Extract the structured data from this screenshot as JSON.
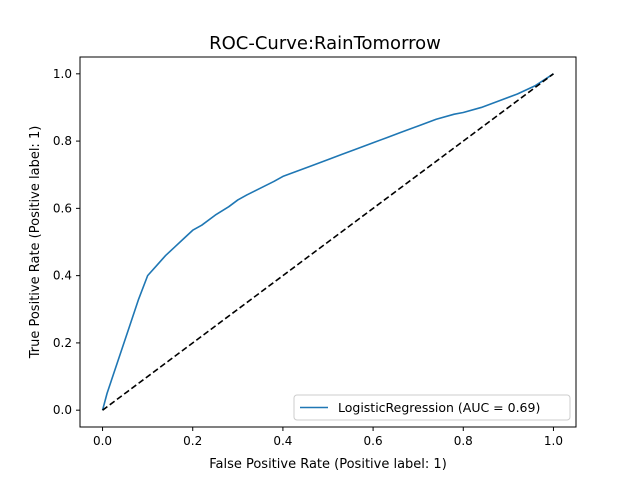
{
  "chart_data": {
    "type": "line",
    "title": "ROC-Curve:RainTomorrow",
    "xlabel": "False Positive Rate (Positive label: 1)",
    "ylabel": "True Positive Rate (Positive label: 1)",
    "xlim": [
      -0.05,
      1.05
    ],
    "ylim": [
      -0.05,
      1.05
    ],
    "xticks": [
      0.0,
      0.2,
      0.4,
      0.6,
      0.8,
      1.0
    ],
    "yticks": [
      0.0,
      0.2,
      0.4,
      0.6,
      0.8,
      1.0
    ],
    "xtick_labels": [
      "0.0",
      "0.2",
      "0.4",
      "0.6",
      "0.8",
      "1.0"
    ],
    "ytick_labels": [
      "0.0",
      "0.2",
      "0.4",
      "0.6",
      "0.8",
      "1.0"
    ],
    "grid": false,
    "legend_position": "lower-right",
    "series": [
      {
        "name": "LogisticRegression (AUC = 0.69)",
        "color": "#1f77b4",
        "style": "solid",
        "x": [
          0.0,
          0.01,
          0.02,
          0.04,
          0.06,
          0.08,
          0.1,
          0.12,
          0.14,
          0.16,
          0.18,
          0.2,
          0.22,
          0.25,
          0.28,
          0.3,
          0.32,
          0.35,
          0.38,
          0.4,
          0.43,
          0.46,
          0.5,
          0.53,
          0.56,
          0.6,
          0.63,
          0.66,
          0.7,
          0.74,
          0.78,
          0.8,
          0.84,
          0.88,
          0.92,
          0.96,
          1.0
        ],
        "y": [
          0.0,
          0.05,
          0.09,
          0.17,
          0.25,
          0.33,
          0.4,
          0.43,
          0.46,
          0.485,
          0.51,
          0.535,
          0.55,
          0.58,
          0.605,
          0.625,
          0.64,
          0.66,
          0.68,
          0.695,
          0.71,
          0.725,
          0.745,
          0.76,
          0.775,
          0.795,
          0.81,
          0.825,
          0.845,
          0.865,
          0.88,
          0.885,
          0.9,
          0.92,
          0.94,
          0.965,
          1.0
        ]
      },
      {
        "name": "",
        "color": "#000000",
        "style": "dashed",
        "x": [
          0.0,
          1.0
        ],
        "y": [
          0.0,
          1.0
        ]
      }
    ]
  }
}
